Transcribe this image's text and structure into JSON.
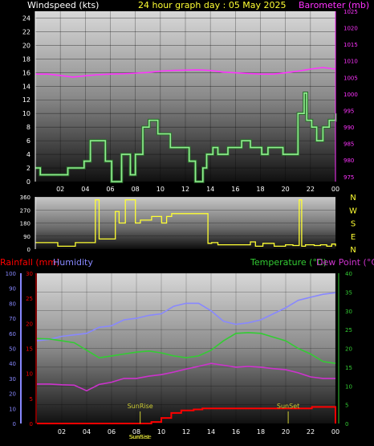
{
  "header": {
    "left": "Windspeed (kts)",
    "center": "24 hour graph day : 05 May 2025",
    "right": "Barometer (mb)"
  },
  "colors": {
    "wind": "#90ee90",
    "barometer": "#ff33ff",
    "direction": "#ffff33",
    "rain": "#ff0000",
    "humidity": "#8888ff",
    "temperature": "#33cc33",
    "dewpoint": "#cc33cc",
    "sun": "#cccc33",
    "axis_text": "#ffffff"
  },
  "chart_data": [
    {
      "type": "line",
      "title": "",
      "xlabel": "",
      "ylabel": "Windspeed (kts)",
      "y2label": "Barometer (mb)",
      "x_ticks": [
        "02",
        "04",
        "06",
        "08",
        "10",
        "12",
        "14",
        "16",
        "18",
        "20",
        "22",
        "00"
      ],
      "ylim": [
        0,
        25
      ],
      "y_ticks": [
        0,
        2,
        4,
        6,
        8,
        10,
        12,
        14,
        16,
        18,
        20,
        22,
        24
      ],
      "y2lim": [
        973.5,
        1025
      ],
      "y2_ticks": [
        975,
        980,
        985,
        990,
        995,
        1000,
        1005,
        1010,
        1015,
        1020,
        1025
      ],
      "series": [
        {
          "name": "Windspeed (kts)",
          "axis": "left",
          "step": true,
          "x": [
            0,
            0.4,
            2,
            2.6,
            3.9,
            4.4,
            5.6,
            6.1,
            6.9,
            7.6,
            8.0,
            8.6,
            9.1,
            9.8,
            10.8,
            12.3,
            12.8,
            13.4,
            13.7,
            14.2,
            14.6,
            15.4,
            16.5,
            17.2,
            18.1,
            18.6,
            19.8,
            20.7,
            21.0,
            21.5,
            21.7,
            22.1,
            22.5,
            23.0,
            23.5,
            24.0
          ],
          "values": [
            2,
            1,
            1,
            2,
            3,
            6,
            3,
            0,
            4,
            1,
            4,
            8,
            9,
            7,
            5,
            3,
            0,
            2,
            4,
            5,
            4,
            5,
            6,
            5,
            4,
            5,
            4,
            4,
            10,
            13,
            9,
            8,
            6,
            8,
            9,
            10
          ]
        },
        {
          "name": "Barometer (mb)",
          "axis": "right",
          "x": [
            0,
            1,
            2,
            3,
            4,
            5,
            6,
            7,
            8,
            9,
            10,
            11,
            12,
            13,
            14,
            15,
            16,
            17,
            18,
            19,
            20,
            21,
            22,
            23,
            24
          ],
          "values": [
            1006.0,
            1006.0,
            1005.6,
            1005.1,
            1005.5,
            1005.8,
            1006.0,
            1006.1,
            1006.3,
            1006.5,
            1006.9,
            1007.1,
            1007.2,
            1007.3,
            1007.1,
            1006.6,
            1006.4,
            1006.2,
            1006.0,
            1006.0,
            1006.4,
            1006.9,
            1007.5,
            1008.0,
            1007.5
          ]
        }
      ]
    },
    {
      "type": "line",
      "title": "",
      "ylabel": "",
      "y2label": "",
      "ylim": [
        0,
        360
      ],
      "y_ticks": [
        0,
        90,
        180,
        270,
        360
      ],
      "right_letters": [
        "N",
        "W",
        "S",
        "E",
        "N"
      ],
      "series": [
        {
          "name": "",
          "step": true,
          "x": [
            0,
            1.3,
            1.8,
            3.2,
            4.8,
            5.1,
            6.4,
            6.7,
            7.2,
            8.0,
            8.4,
            9.3,
            10.1,
            10.5,
            10.9,
            11.8,
            13.8,
            14.1,
            14.6,
            16.4,
            17.2,
            17.6,
            18.2,
            19.1,
            20.0,
            20.6,
            21.1,
            21.3,
            21.6,
            22.3,
            22.8,
            23.3,
            23.7,
            24.0
          ],
          "values": [
            45,
            45,
            20,
            45,
            340,
            70,
            260,
            180,
            340,
            180,
            200,
            225,
            180,
            225,
            245,
            245,
            40,
            45,
            30,
            30,
            50,
            20,
            40,
            20,
            30,
            25,
            340,
            20,
            30,
            25,
            30,
            20,
            35,
            20
          ]
        }
      ]
    },
    {
      "type": "line",
      "title": "",
      "ylabel": "",
      "left_labels": [
        "Rainfall (mm)",
        "Humidity"
      ],
      "right_labels": [
        "Temperature (°C)",
        "Dew Point (°C)"
      ],
      "humidity_ticks": [
        0,
        10,
        20,
        30,
        40,
        50,
        60,
        70,
        80,
        90,
        100
      ],
      "rain_ticks": [
        0,
        5,
        10,
        15,
        20,
        25,
        30
      ],
      "rain_lim": [
        0,
        30
      ],
      "temp_ticks": [
        0,
        5,
        10,
        15,
        20,
        25,
        30,
        35,
        40
      ],
      "temp_lim": [
        0,
        40
      ],
      "x_ticks": [
        "02",
        "04",
        "06",
        "08",
        "10",
        "12",
        "14",
        "16",
        "18",
        "20",
        "22",
        "00"
      ],
      "annotations": [
        {
          "label": "SunRise",
          "x": 8.3
        },
        {
          "label": "SunSet",
          "x": 20.2
        }
      ],
      "bottom_labels": [
        "SunRise",
        "SunSet"
      ],
      "series": [
        {
          "name": "Rainfall (mm)",
          "scale": "rain",
          "step": true,
          "x": [
            0,
            8.7,
            9.2,
            10.0,
            10.8,
            11.6,
            12.6,
            13.3,
            14.3,
            22.1,
            23.7,
            24.0
          ],
          "values": [
            0,
            0,
            0.3,
            1.1,
            2.1,
            2.6,
            2.8,
            3.0,
            3.0,
            3.3,
            3.3,
            0
          ]
        },
        {
          "name": "Humidity",
          "scale": "humidity",
          "x": [
            0,
            1,
            2,
            3,
            4,
            5,
            6,
            7,
            8,
            9,
            10,
            11,
            12,
            13,
            14,
            15,
            16,
            17,
            18,
            19,
            20,
            21,
            22,
            23,
            24
          ],
          "values": [
            55,
            56,
            58,
            59,
            60,
            64,
            65,
            69,
            70,
            72,
            73,
            78,
            80,
            80,
            75,
            68,
            66,
            67,
            69,
            73,
            77,
            82,
            84,
            86,
            87
          ]
        },
        {
          "name": "Temperature (°C)",
          "scale": "temp",
          "x": [
            0,
            1,
            2,
            3,
            4,
            5,
            6,
            7,
            8,
            9,
            10,
            11,
            12,
            13,
            14,
            15,
            16,
            17,
            18,
            19,
            20,
            21,
            22,
            23,
            24
          ],
          "values": [
            22.6,
            22.5,
            22.0,
            21.5,
            19.5,
            17.5,
            18.0,
            18.5,
            19.0,
            19.3,
            18.8,
            18.0,
            17.5,
            18.0,
            19.5,
            22.0,
            24.0,
            24.2,
            24.0,
            23.0,
            22.0,
            20.0,
            18.5,
            16.5,
            16.0
          ]
        },
        {
          "name": "Dew Point (°C)",
          "scale": "temp",
          "x": [
            0,
            1,
            2,
            3,
            4,
            5,
            6,
            7,
            8,
            9,
            10,
            11,
            12,
            13,
            14,
            15,
            16,
            17,
            18,
            19,
            20,
            21,
            22,
            23,
            24
          ],
          "values": [
            10.5,
            10.5,
            10.3,
            10.2,
            8.7,
            10.4,
            11.0,
            12.0,
            12.0,
            12.6,
            13.0,
            13.7,
            14.5,
            15.2,
            16.0,
            15.5,
            15.0,
            15.2,
            15.0,
            14.6,
            14.3,
            13.5,
            12.4,
            12.0,
            12.0
          ]
        }
      ]
    }
  ]
}
